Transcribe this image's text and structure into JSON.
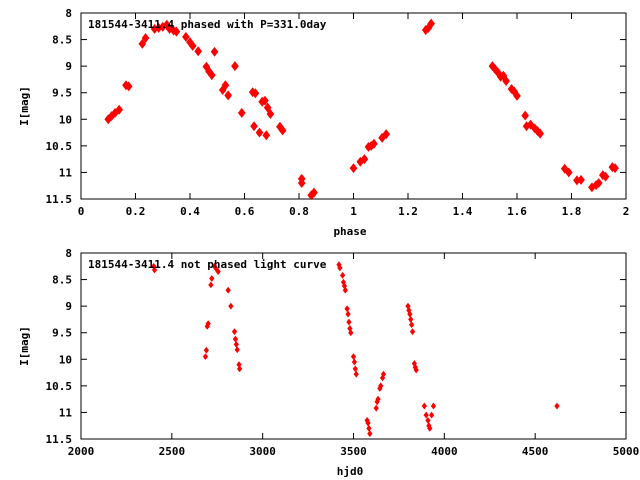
{
  "chart_data": [
    {
      "type": "scatter",
      "title": "181544-3411.4 phased with P=331.0day",
      "xlabel": "phase",
      "ylabel": "I[mag]",
      "xlim": [
        0,
        2
      ],
      "ylim": [
        8,
        11.5
      ],
      "y_inverted": true,
      "xticks": [
        0,
        0.2,
        0.4,
        0.6,
        0.8,
        1,
        1.2,
        1.4,
        1.6,
        1.8,
        2
      ],
      "xtick_labels": [
        "0",
        "0.2",
        "0.4",
        "0.6",
        "0.8",
        "1",
        "1.2",
        "1.4",
        "1.6",
        "1.8",
        "2"
      ],
      "yticks": [
        8,
        8.5,
        9,
        9.5,
        10,
        10.5,
        11,
        11.5
      ],
      "ytick_labels": [
        "8",
        "8.5",
        "9",
        "9.5",
        "10",
        "10.5",
        "11",
        "11.5"
      ],
      "grid": false,
      "marker_color": "#ff0000",
      "marker_shape": "filled-diamond",
      "points": [
        [
          0.1,
          10.0
        ],
        [
          0.112,
          9.94
        ],
        [
          0.125,
          9.88
        ],
        [
          0.14,
          9.82
        ],
        [
          0.165,
          9.36
        ],
        [
          0.175,
          9.38
        ],
        [
          0.225,
          8.58
        ],
        [
          0.237,
          8.47
        ],
        [
          0.27,
          8.3
        ],
        [
          0.285,
          8.28
        ],
        [
          0.3,
          8.26
        ],
        [
          0.315,
          8.22
        ],
        [
          0.325,
          8.3
        ],
        [
          0.34,
          8.33
        ],
        [
          0.35,
          8.35
        ],
        [
          0.385,
          8.45
        ],
        [
          0.4,
          8.55
        ],
        [
          0.41,
          8.62
        ],
        [
          0.43,
          8.72
        ],
        [
          0.46,
          9.01
        ],
        [
          0.47,
          9.1
        ],
        [
          0.48,
          9.17
        ],
        [
          0.49,
          8.73
        ],
        [
          0.52,
          9.45
        ],
        [
          0.53,
          9.36
        ],
        [
          0.54,
          9.55
        ],
        [
          0.565,
          9.0
        ],
        [
          0.59,
          9.88
        ],
        [
          0.63,
          9.49
        ],
        [
          0.64,
          9.51
        ],
        [
          0.635,
          10.13
        ],
        [
          0.655,
          10.25
        ],
        [
          0.665,
          9.67
        ],
        [
          0.675,
          9.65
        ],
        [
          0.685,
          9.78
        ],
        [
          0.695,
          9.9
        ],
        [
          0.68,
          10.3
        ],
        [
          0.73,
          10.14
        ],
        [
          0.74,
          10.21
        ],
        [
          0.81,
          11.12
        ],
        [
          0.81,
          11.2
        ],
        [
          0.845,
          11.43
        ],
        [
          0.855,
          11.38
        ],
        [
          1.0,
          10.92
        ],
        [
          1.025,
          10.8
        ],
        [
          1.04,
          10.75
        ],
        [
          1.055,
          10.52
        ],
        [
          1.065,
          10.5
        ],
        [
          1.075,
          10.46
        ],
        [
          1.105,
          10.35
        ],
        [
          1.12,
          10.28
        ],
        [
          1.265,
          8.32
        ],
        [
          1.275,
          8.28
        ],
        [
          1.285,
          8.2
        ],
        [
          1.51,
          9.0
        ],
        [
          1.52,
          9.06
        ],
        [
          1.53,
          9.12
        ],
        [
          1.54,
          9.2
        ],
        [
          1.55,
          9.18
        ],
        [
          1.56,
          9.28
        ],
        [
          1.58,
          9.43
        ],
        [
          1.59,
          9.48
        ],
        [
          1.6,
          9.56
        ],
        [
          1.63,
          9.93
        ],
        [
          1.635,
          10.13
        ],
        [
          1.65,
          10.1
        ],
        [
          1.665,
          10.17
        ],
        [
          1.675,
          10.22
        ],
        [
          1.685,
          10.27
        ],
        [
          1.775,
          10.93
        ],
        [
          1.79,
          11.0
        ],
        [
          1.82,
          11.15
        ],
        [
          1.835,
          11.14
        ],
        [
          1.875,
          11.28
        ],
        [
          1.89,
          11.24
        ],
        [
          1.9,
          11.2
        ],
        [
          1.915,
          11.05
        ],
        [
          1.925,
          11.08
        ],
        [
          1.95,
          10.9
        ],
        [
          1.96,
          10.92
        ]
      ]
    },
    {
      "type": "scatter",
      "title": "181544-3411.4 not phased light curve",
      "xlabel": "hjd0",
      "ylabel": "I[mag]",
      "xlim": [
        2000,
        5000
      ],
      "ylim": [
        8,
        11.5
      ],
      "y_inverted": true,
      "xticks": [
        2000,
        2500,
        3000,
        3500,
        4000,
        4500,
        5000
      ],
      "xtick_labels": [
        "2000",
        "2500",
        "3000",
        "3500",
        "4000",
        "4500",
        "5000"
      ],
      "yticks": [
        8,
        8.5,
        9,
        9.5,
        10,
        10.5,
        11,
        11.5
      ],
      "ytick_labels": [
        "8",
        "8.5",
        "9",
        "9.5",
        "10",
        "10.5",
        "11",
        "11.5"
      ],
      "grid": false,
      "marker_color": "#ff0000",
      "marker_shape": "small-diamond",
      "points": [
        [
          2400,
          8.25
        ],
        [
          2405,
          8.32
        ],
        [
          2685,
          9.95
        ],
        [
          2690,
          9.83
        ],
        [
          2695,
          9.38
        ],
        [
          2700,
          9.33
        ],
        [
          2715,
          8.6
        ],
        [
          2720,
          8.48
        ],
        [
          2735,
          8.25
        ],
        [
          2745,
          8.3
        ],
        [
          2755,
          8.35
        ],
        [
          2810,
          8.7
        ],
        [
          2825,
          9.0
        ],
        [
          2845,
          9.48
        ],
        [
          2850,
          9.62
        ],
        [
          2855,
          9.72
        ],
        [
          2860,
          9.82
        ],
        [
          2870,
          10.1
        ],
        [
          2873,
          10.18
        ],
        [
          3420,
          8.22
        ],
        [
          3425,
          8.28
        ],
        [
          3440,
          8.42
        ],
        [
          3445,
          8.55
        ],
        [
          3450,
          8.62
        ],
        [
          3455,
          8.7
        ],
        [
          3465,
          9.05
        ],
        [
          3470,
          9.15
        ],
        [
          3475,
          9.3
        ],
        [
          3480,
          9.42
        ],
        [
          3485,
          9.5
        ],
        [
          3500,
          9.95
        ],
        [
          3505,
          10.05
        ],
        [
          3510,
          10.18
        ],
        [
          3515,
          10.28
        ],
        [
          3575,
          11.15
        ],
        [
          3580,
          11.2
        ],
        [
          3585,
          11.3
        ],
        [
          3590,
          11.4
        ],
        [
          3625,
          10.92
        ],
        [
          3630,
          10.8
        ],
        [
          3635,
          10.75
        ],
        [
          3645,
          10.55
        ],
        [
          3650,
          10.5
        ],
        [
          3660,
          10.35
        ],
        [
          3665,
          10.28
        ],
        [
          3800,
          9.0
        ],
        [
          3805,
          9.08
        ],
        [
          3810,
          9.15
        ],
        [
          3815,
          9.25
        ],
        [
          3820,
          9.35
        ],
        [
          3825,
          9.48
        ],
        [
          3835,
          10.08
        ],
        [
          3840,
          10.15
        ],
        [
          3845,
          10.2
        ],
        [
          3890,
          10.88
        ],
        [
          3900,
          11.05
        ],
        [
          3910,
          11.15
        ],
        [
          3915,
          11.25
        ],
        [
          3920,
          11.3
        ],
        [
          3930,
          11.05
        ],
        [
          3940,
          10.88
        ],
        [
          4620,
          10.88
        ]
      ]
    }
  ]
}
